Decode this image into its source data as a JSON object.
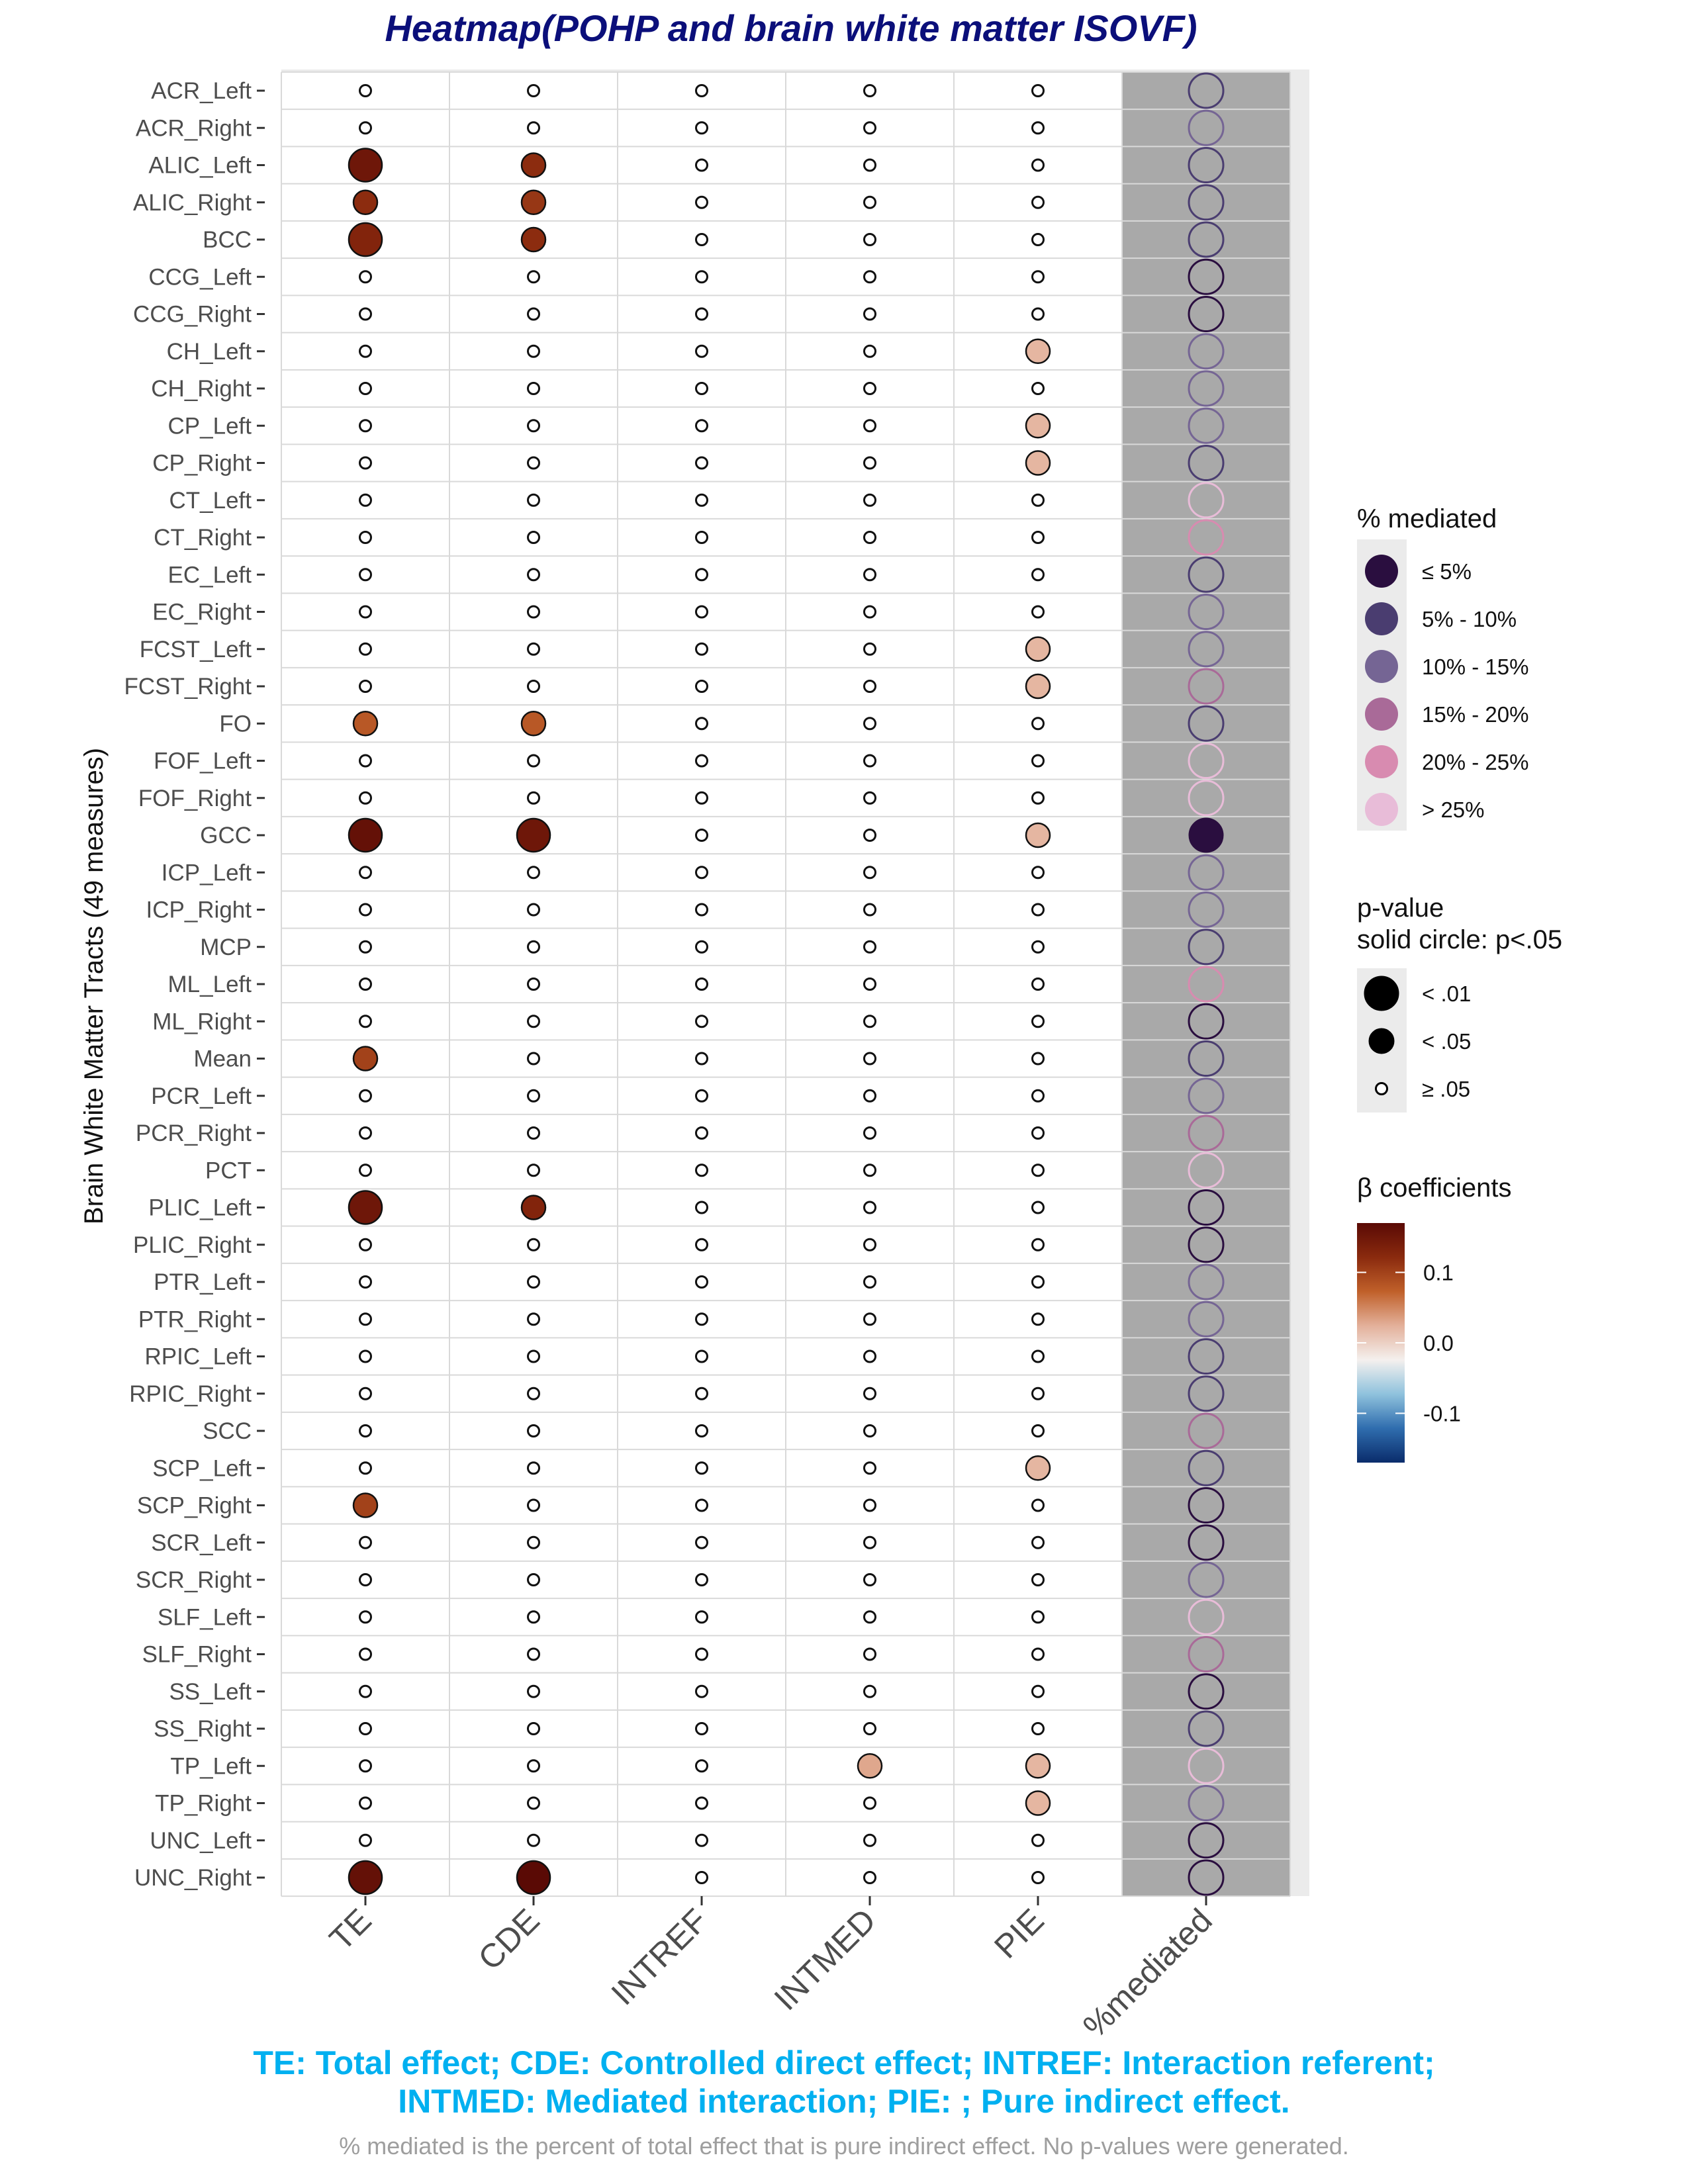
{
  "title": "Heatmap(POHP and brain white matter ISOVF)",
  "chart_data": {
    "type": "bubble-heatmap",
    "title": "Heatmap(POHP and brain white matter ISOVF)",
    "ylabel": "Brain White Matter Tracts (49 measures)",
    "xlabel": "",
    "columns": [
      "TE",
      "CDE",
      "INTREF",
      "INTMED",
      "PIE",
      "%mediated"
    ],
    "rows": [
      "ACR_Left",
      "ACR_Right",
      "ALIC_Left",
      "ALIC_Right",
      "BCC",
      "CCG_Left",
      "CCG_Right",
      "CH_Left",
      "CH_Right",
      "CP_Left",
      "CP_Right",
      "CT_Left",
      "CT_Right",
      "EC_Left",
      "EC_Right",
      "FCST_Left",
      "FCST_Right",
      "FO",
      "FOF_Left",
      "FOF_Right",
      "GCC",
      "ICP_Left",
      "ICP_Right",
      "MCP",
      "ML_Left",
      "ML_Right",
      "Mean",
      "PCR_Left",
      "PCR_Right",
      "PCT",
      "PLIC_Left",
      "PLIC_Right",
      "PTR_Left",
      "PTR_Right",
      "RPIC_Left",
      "RPIC_Right",
      "SCC",
      "SCP_Left",
      "SCP_Right",
      "SCR_Left",
      "SCR_Right",
      "SLF_Left",
      "SLF_Right",
      "SS_Left",
      "SS_Right",
      "TP_Left",
      "TP_Right",
      "UNC_Left",
      "UNC_Right"
    ],
    "significant_points": [
      {
        "row": "ALIC_Left",
        "col": "TE",
        "beta": 0.15,
        "p": "< .01"
      },
      {
        "row": "ALIC_Left",
        "col": "CDE",
        "beta": 0.12,
        "p": "< .05"
      },
      {
        "row": "ALIC_Right",
        "col": "TE",
        "beta": 0.12,
        "p": "< .05"
      },
      {
        "row": "ALIC_Right",
        "col": "CDE",
        "beta": 0.11,
        "p": "< .05"
      },
      {
        "row": "BCC",
        "col": "TE",
        "beta": 0.13,
        "p": "< .01"
      },
      {
        "row": "BCC",
        "col": "CDE",
        "beta": 0.12,
        "p": "< .05"
      },
      {
        "row": "CH_Left",
        "col": "PIE",
        "beta": 0.02,
        "p": "< .05"
      },
      {
        "row": "CP_Left",
        "col": "PIE",
        "beta": 0.02,
        "p": "< .05"
      },
      {
        "row": "CP_Right",
        "col": "PIE",
        "beta": 0.02,
        "p": "< .05"
      },
      {
        "row": "FCST_Left",
        "col": "PIE",
        "beta": 0.02,
        "p": "< .05"
      },
      {
        "row": "FCST_Right",
        "col": "PIE",
        "beta": 0.02,
        "p": "< .05"
      },
      {
        "row": "FO",
        "col": "TE",
        "beta": 0.08,
        "p": "< .05"
      },
      {
        "row": "FO",
        "col": "CDE",
        "beta": 0.08,
        "p": "< .05"
      },
      {
        "row": "GCC",
        "col": "TE",
        "beta": 0.16,
        "p": "< .01"
      },
      {
        "row": "GCC",
        "col": "CDE",
        "beta": 0.15,
        "p": "< .01"
      },
      {
        "row": "GCC",
        "col": "PIE",
        "beta": 0.02,
        "p": "< .05"
      },
      {
        "row": "Mean",
        "col": "TE",
        "beta": 0.1,
        "p": "< .05"
      },
      {
        "row": "PLIC_Left",
        "col": "TE",
        "beta": 0.15,
        "p": "< .01"
      },
      {
        "row": "PLIC_Left",
        "col": "CDE",
        "beta": 0.13,
        "p": "< .05"
      },
      {
        "row": "SCP_Left",
        "col": "PIE",
        "beta": 0.02,
        "p": "< .05"
      },
      {
        "row": "SCP_Right",
        "col": "TE",
        "beta": 0.1,
        "p": "< .05"
      },
      {
        "row": "TP_Left",
        "col": "INTMED",
        "beta": 0.03,
        "p": "< .05"
      },
      {
        "row": "TP_Left",
        "col": "PIE",
        "beta": 0.02,
        "p": "< .05"
      },
      {
        "row": "TP_Right",
        "col": "PIE",
        "beta": 0.02,
        "p": "< .05"
      },
      {
        "row": "UNC_Right",
        "col": "TE",
        "beta": 0.16,
        "p": "< .01"
      },
      {
        "row": "UNC_Right",
        "col": "CDE",
        "beta": 0.17,
        "p": "< .01"
      }
    ],
    "nonsignificant_default": {
      "p": "≥ .05"
    },
    "pct_mediated": {
      "ACR_Left": "5% - 10%",
      "ACR_Right": "10% - 15%",
      "ALIC_Left": "5% - 10%",
      "ALIC_Right": "5% - 10%",
      "BCC": "5% - 10%",
      "CCG_Left": "≤ 5%",
      "CCG_Right": "≤ 5%",
      "CH_Left": "10% - 15%",
      "CH_Right": "10% - 15%",
      "CP_Left": "10% - 15%",
      "CP_Right": "5% - 10%",
      "CT_Left": "> 25%",
      "CT_Right": "20% - 25%",
      "EC_Left": "5% - 10%",
      "EC_Right": "10% - 15%",
      "FCST_Left": "10% - 15%",
      "FCST_Right": "15% - 20%",
      "FO": "5% - 10%",
      "FOF_Left": "> 25%",
      "FOF_Right": "> 25%",
      "GCC": "≤ 5%",
      "ICP_Left": "10% - 15%",
      "ICP_Right": "10% - 15%",
      "MCP": "5% - 10%",
      "ML_Left": "20% - 25%",
      "ML_Right": "≤ 5%",
      "Mean": "5% - 10%",
      "PCR_Left": "10% - 15%",
      "PCR_Right": "15% - 20%",
      "PCT": "> 25%",
      "PLIC_Left": "≤ 5%",
      "PLIC_Right": "≤ 5%",
      "PTR_Left": "10% - 15%",
      "PTR_Right": "10% - 15%",
      "RPIC_Left": "5% - 10%",
      "RPIC_Right": "5% - 10%",
      "SCC": "15% - 20%",
      "SCP_Left": "5% - 10%",
      "SCP_Right": "≤ 5%",
      "SCR_Left": "≤ 5%",
      "SCR_Right": "10% - 15%",
      "SLF_Left": "> 25%",
      "SLF_Right": "15% - 20%",
      "SS_Left": "≤ 5%",
      "SS_Right": "5% - 10%",
      "TP_Left": "> 25%",
      "TP_Right": "10% - 15%",
      "UNC_Left": "≤ 5%",
      "UNC_Right": "≤ 5%"
    },
    "pct_mediated_solid_rows": [
      "GCC"
    ],
    "legend_mediated": {
      "title": "% mediated",
      "items": [
        {
          "label": "≤ 5%",
          "color": "#2A0E3F"
        },
        {
          "label": "5% - 10%",
          "color": "#4A3D70"
        },
        {
          "label": "10% - 15%",
          "color": "#756594"
        },
        {
          "label": "15% - 20%",
          "color": "#A96A98"
        },
        {
          "label": "20% - 25%",
          "color": "#D88BB0"
        },
        {
          "label": "> 25%",
          "color": "#E8BCD8"
        }
      ]
    },
    "legend_pvalue": {
      "title_line1": "p-value",
      "title_line2": "solid circle: p<.05",
      "items": [
        {
          "label": "< .01"
        },
        {
          "label": "< .05"
        },
        {
          "label": "≥ .05"
        }
      ]
    },
    "legend_beta": {
      "title": "β coefficients",
      "ticks": [
        {
          "label": "0.1",
          "value": 0.1
        },
        {
          "label": "0.0",
          "value": 0.0
        },
        {
          "label": "-0.1",
          "value": -0.1
        }
      ],
      "range": [
        -0.17,
        0.17
      ],
      "colors": [
        "#0A2C6B",
        "#2F6DAE",
        "#8FC2DD",
        "#F4F0EE",
        "#E3B09A",
        "#C0602A",
        "#8A2A0E",
        "#5A0A05"
      ]
    },
    "panel_background": "#EBEBEB",
    "mediated_column_background": "#A9A9A9",
    "grid": true
  },
  "footer": {
    "line1": "TE: Total effect; CDE: Controlled direct effect; INTREF: Interaction referent;",
    "line2": "INTMED: Mediated interaction; PIE: ; Pure indirect effect.",
    "note": "% mediated is the percent of total effect that is pure indirect effect. No p-values were generated."
  }
}
